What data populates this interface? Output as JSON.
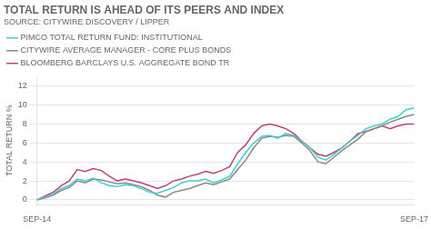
{
  "chart_data": {
    "type": "line",
    "title": "TOTAL RETURN IS AHEAD OF ITS PEERS AND INDEX",
    "subtitle": "SOURCE: CITYWIRE DISCOVERY / LIPPER",
    "ylabel": "TOTAL RETURN %",
    "categories": [
      "SEP-14",
      null,
      null,
      null,
      null,
      null,
      null,
      null,
      null,
      null,
      null,
      null,
      null,
      null,
      null,
      null,
      null,
      null,
      null,
      null,
      null,
      null,
      null,
      null,
      null,
      null,
      null,
      null,
      null,
      null,
      null,
      null,
      null,
      null,
      null,
      null,
      null,
      null,
      null,
      null,
      null,
      null,
      null,
      null,
      null,
      null,
      null,
      "SEP-17"
    ],
    "series": [
      {
        "name": "PIMCO TOTAL RETURN FUND: INSTITUTIONAL",
        "color": "#3ecfcf",
        "values": [
          0.0,
          0.3,
          0.6,
          1.2,
          1.5,
          2.2,
          2.0,
          2.3,
          1.8,
          1.5,
          1.4,
          1.6,
          1.5,
          1.2,
          0.8,
          0.7,
          1.0,
          1.3,
          1.8,
          2.0,
          2.0,
          2.2,
          1.8,
          2.1,
          2.5,
          3.8,
          5.0,
          6.0,
          6.7,
          6.8,
          6.5,
          7.0,
          6.8,
          6.2,
          5.5,
          4.5,
          4.2,
          4.8,
          5.5,
          6.2,
          6.8,
          7.5,
          7.8,
          8.0,
          8.5,
          8.8,
          9.5,
          9.7
        ]
      },
      {
        "name": "CITYWIRE AVERAGE MANAGER - CORE PLUS BONDS",
        "color": "#888888",
        "values": [
          0.0,
          0.2,
          0.5,
          1.0,
          1.3,
          2.0,
          1.8,
          2.2,
          2.1,
          1.9,
          1.7,
          1.8,
          1.6,
          1.4,
          1.0,
          0.5,
          0.3,
          0.8,
          1.0,
          1.2,
          1.5,
          1.8,
          1.6,
          1.9,
          2.2,
          3.2,
          4.2,
          5.5,
          6.5,
          6.7,
          6.6,
          6.8,
          6.7,
          6.0,
          5.2,
          4.0,
          3.8,
          4.5,
          5.2,
          5.8,
          6.4,
          7.2,
          7.5,
          7.8,
          8.2,
          8.5,
          8.8,
          9.0
        ]
      },
      {
        "name": "BLOOMBERG BARCLAYS U.S. AGGREGATE BOND TR",
        "color": "#c0407a",
        "values": [
          0.0,
          0.4,
          0.8,
          1.5,
          2.0,
          3.2,
          3.0,
          3.3,
          3.1,
          2.5,
          2.0,
          2.2,
          2.0,
          1.8,
          1.5,
          1.2,
          1.5,
          2.0,
          2.2,
          2.5,
          2.7,
          3.0,
          2.8,
          3.1,
          3.5,
          5.0,
          5.8,
          7.0,
          7.8,
          8.0,
          7.8,
          7.5,
          7.0,
          6.2,
          5.5,
          4.8,
          4.6,
          5.0,
          5.5,
          6.2,
          7.0,
          7.2,
          7.5,
          7.8,
          7.5,
          7.8,
          8.0,
          8.0
        ]
      }
    ],
    "ylim": [
      -0.5,
      13
    ],
    "yticks": [
      0,
      2,
      4,
      6,
      8,
      10,
      12
    ],
    "grid": true,
    "legend": "top"
  }
}
